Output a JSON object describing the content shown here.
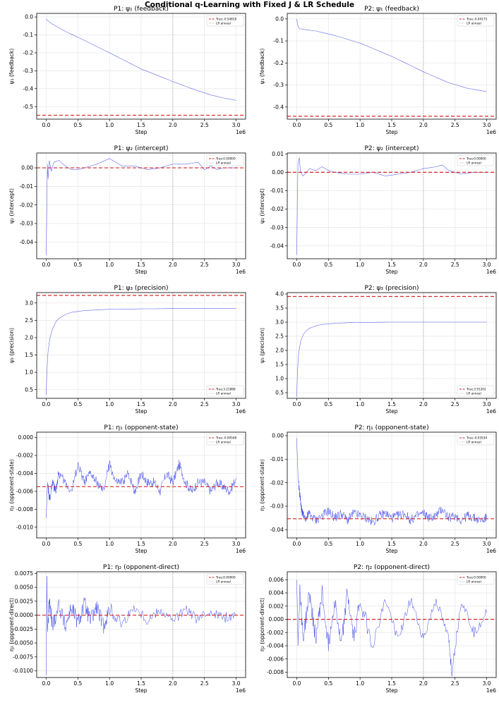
{
  "suptitle": "Conditional q-Learning with Fixed J & LR Schedule",
  "colors": {
    "trace": "#2b36e8",
    "true_line": "#d62728",
    "anneal": "#aaaaaa",
    "grid": "#e6e6e6"
  },
  "chart_data": [
    {
      "type": "line",
      "title": "P1: ψ₁ (feedback)",
      "ylabel": "ψ₁ (feedback)",
      "xlabel": "Step",
      "x_exponent": "1e6",
      "xlim": [
        -0.15,
        3.15
      ],
      "ylim": [
        -0.57,
        0.02
      ],
      "xticks": [
        0,
        0.5,
        1,
        1.5,
        2,
        2.5,
        3
      ],
      "xtick_labels": [
        "0.0",
        "0.5",
        "1.0",
        "1.5",
        "2.0",
        "2.5",
        "3.0"
      ],
      "yticks": [
        0,
        -0.1,
        -0.2,
        -0.3,
        -0.4,
        -0.5
      ],
      "ytick_labels": [
        "0.0",
        "-0.1",
        "-0.2",
        "-0.3",
        "-0.4",
        "-0.5"
      ],
      "true_value": -0.54818,
      "anneal_x": 2.0,
      "legend": {
        "position": "top-right",
        "entries": [
          "True:-0.54818",
          "LR anneal"
        ]
      },
      "series": [
        {
          "x": [
            0,
            0.02,
            0.1,
            0.3,
            0.6,
            1.0,
            1.5,
            2.0,
            2.3,
            2.6,
            2.8,
            3.0
          ],
          "y": [
            -0.01,
            -0.02,
            -0.04,
            -0.08,
            -0.13,
            -0.2,
            -0.29,
            -0.36,
            -0.4,
            -0.435,
            -0.452,
            -0.465
          ]
        }
      ]
    },
    {
      "type": "line",
      "title": "P2: ψ₁ (feedback)",
      "ylabel": "ψ₁ (feedback)",
      "xlabel": "Step",
      "x_exponent": "1e6",
      "xlim": [
        -0.15,
        3.15
      ],
      "ylim": [
        -0.455,
        0.025
      ],
      "xticks": [
        0,
        0.5,
        1,
        1.5,
        2,
        2.5,
        3
      ],
      "xtick_labels": [
        "0.0",
        "0.5",
        "1.0",
        "1.5",
        "2.0",
        "2.5",
        "3.0"
      ],
      "yticks": [
        0,
        -0.1,
        -0.2,
        -0.3,
        -0.4
      ],
      "ytick_labels": [
        "0.0",
        "-0.1",
        "-0.2",
        "-0.3",
        "-0.4"
      ],
      "true_value": -0.44175,
      "anneal_x": 2.0,
      "legend": {
        "position": "top-right",
        "entries": [
          "True:-0.44175",
          "LR anneal"
        ]
      },
      "series": [
        {
          "x": [
            0,
            0.01,
            0.03,
            0.05,
            0.3,
            0.6,
            1.0,
            1.5,
            2.0,
            2.4,
            2.7,
            3.0
          ],
          "y": [
            0.0,
            -0.02,
            -0.04,
            -0.045,
            -0.055,
            -0.075,
            -0.11,
            -0.17,
            -0.24,
            -0.29,
            -0.315,
            -0.33
          ]
        }
      ]
    },
    {
      "type": "line",
      "title": "P1: ψ₂ (intercept)",
      "ylabel": "ψ₂ (intercept)",
      "xlabel": "Step",
      "x_exponent": "1e6",
      "xlim": [
        -0.15,
        3.15
      ],
      "ylim": [
        -0.049,
        0.008
      ],
      "xticks": [
        0,
        0.5,
        1,
        1.5,
        2,
        2.5,
        3
      ],
      "xtick_labels": [
        "0.0",
        "0.5",
        "1.0",
        "1.5",
        "2.0",
        "2.5",
        "3.0"
      ],
      "yticks": [
        0,
        -0.01,
        -0.02,
        -0.03,
        -0.04
      ],
      "ytick_labels": [
        "0.00",
        "-0.01",
        "-0.02",
        "-0.03",
        "-0.04"
      ],
      "true_value": 0.0,
      "anneal_x": 2.0,
      "legend": {
        "position": "top-right",
        "entries": [
          "True:0.00000",
          "LR anneal"
        ]
      },
      "series": [
        {
          "x": [
            0,
            0.01,
            0.02,
            0.03,
            0.05,
            0.08,
            0.12,
            0.2,
            0.3,
            0.4,
            0.5,
            0.6,
            0.8,
            1.0,
            1.1,
            1.2,
            1.4,
            1.6,
            1.8,
            2.0,
            2.2,
            2.4,
            2.5,
            2.6,
            2.7,
            2.8,
            3.0
          ],
          "y": [
            -0.047,
            -0.02,
            0.002,
            -0.006,
            0.004,
            -0.002,
            0.003,
            0.004,
            0.001,
            -0.001,
            -0.001,
            0.0,
            0.002,
            0.005,
            0.003,
            0.001,
            0.001,
            -0.001,
            0.0,
            0.002,
            0.002,
            0.003,
            -0.001,
            0.001,
            -0.001,
            0.0,
            0.0
          ]
        }
      ]
    },
    {
      "type": "line",
      "title": "P2: ψ₂ (intercept)",
      "ylabel": "ψ₂ (intercept)",
      "xlabel": "Step",
      "x_exponent": "1e6",
      "xlim": [
        -0.15,
        3.15
      ],
      "ylim": [
        -0.047,
        0.0105
      ],
      "xticks": [
        0,
        0.5,
        1,
        1.5,
        2,
        2.5,
        3
      ],
      "xtick_labels": [
        "0.0",
        "0.5",
        "1.0",
        "1.5",
        "2.0",
        "2.5",
        "3.0"
      ],
      "yticks": [
        0.01,
        0,
        -0.01,
        -0.02,
        -0.03,
        -0.04
      ],
      "ytick_labels": [
        "0.01",
        "0.00",
        "-0.01",
        "-0.02",
        "-0.03",
        "-0.04"
      ],
      "true_value": 0.0,
      "anneal_x": 2.0,
      "legend": {
        "position": "top-right",
        "entries": [
          "True:0.00000",
          "LR anneal"
        ]
      },
      "series": [
        {
          "x": [
            0,
            0.01,
            0.02,
            0.04,
            0.06,
            0.1,
            0.2,
            0.3,
            0.4,
            0.5,
            0.6,
            0.8,
            1.0,
            1.2,
            1.4,
            1.6,
            1.8,
            2.0,
            2.2,
            2.3,
            2.4,
            2.6,
            2.8,
            3.0
          ],
          "y": [
            -0.045,
            -0.012,
            0.005,
            0.008,
            0.0,
            -0.002,
            0.002,
            0.001,
            0.003,
            0.001,
            0.0,
            -0.001,
            -0.001,
            0.0,
            -0.002,
            -0.001,
            0.0,
            0.002,
            0.003,
            0.004,
            0.001,
            -0.001,
            0.0,
            0.0
          ]
        }
      ]
    },
    {
      "type": "line",
      "title": "P1: ψ₃ (precision)",
      "ylabel": "ψ₃ (precision)",
      "xlabel": "Step",
      "x_exponent": "1e6",
      "xlim": [
        -0.15,
        3.15
      ],
      "ylim": [
        0.25,
        3.3
      ],
      "xticks": [
        0,
        0.5,
        1,
        1.5,
        2,
        2.5,
        3
      ],
      "xtick_labels": [
        "0.0",
        "0.5",
        "1.0",
        "1.5",
        "2.0",
        "2.5",
        "3.0"
      ],
      "yticks": [
        0.5,
        1.0,
        1.5,
        2.0,
        2.5,
        3.0
      ],
      "ytick_labels": [
        "0.5",
        "1.0",
        "1.5",
        "2.0",
        "2.5",
        "3.0"
      ],
      "true_value": 3.21888,
      "anneal_x": 2.0,
      "legend": {
        "position": "bottom-right",
        "entries": [
          "True:3.21888",
          "LR anneal"
        ]
      },
      "series": [
        {
          "x": [
            0,
            0.01,
            0.03,
            0.06,
            0.1,
            0.15,
            0.2,
            0.3,
            0.4,
            0.6,
            0.8,
            1.0,
            1.5,
            2.0,
            2.5,
            3.0
          ],
          "y": [
            0.35,
            1.0,
            1.6,
            2.0,
            2.25,
            2.45,
            2.55,
            2.67,
            2.73,
            2.78,
            2.8,
            2.82,
            2.83,
            2.84,
            2.84,
            2.84
          ]
        }
      ]
    },
    {
      "type": "line",
      "title": "P2: ψ₃ (precision)",
      "ylabel": "ψ₃ (precision)",
      "xlabel": "Step",
      "x_exponent": "1e6",
      "xlim": [
        -0.15,
        3.15
      ],
      "ylim": [
        0.3,
        4.05
      ],
      "xticks": [
        0,
        0.5,
        1,
        1.5,
        2,
        2.5,
        3
      ],
      "xtick_labels": [
        "0.0",
        "0.5",
        "1.0",
        "1.5",
        "2.0",
        "2.5",
        "3.0"
      ],
      "yticks": [
        0.5,
        1.0,
        1.5,
        2.0,
        2.5,
        3.0,
        3.5,
        4.0
      ],
      "ytick_labels": [
        "0.5",
        "1.0",
        "1.5",
        "2.0",
        "2.5",
        "3.0",
        "3.5",
        "4.0"
      ],
      "true_value": 3.91202,
      "anneal_x": 2.0,
      "legend": {
        "position": "bottom-right",
        "entries": [
          "True:3.91202",
          "LR anneal"
        ]
      },
      "series": [
        {
          "x": [
            0,
            0.01,
            0.03,
            0.06,
            0.1,
            0.15,
            0.2,
            0.3,
            0.4,
            0.6,
            0.8,
            1.0,
            1.5,
            2.0,
            2.5,
            3.0
          ],
          "y": [
            0.35,
            1.2,
            1.9,
            2.3,
            2.55,
            2.7,
            2.78,
            2.87,
            2.92,
            2.96,
            2.98,
            2.99,
            3.0,
            3.0,
            3.0,
            3.0
          ]
        }
      ]
    },
    {
      "type": "line",
      "title": "P1: η₁ (opponent-state)",
      "ylabel": "η₁ (opponent-state)",
      "xlabel": "Step",
      "x_exponent": "1e6",
      "xlim": [
        -0.15,
        3.15
      ],
      "ylim": [
        -0.0112,
        0.0006
      ],
      "xticks": [
        0,
        0.5,
        1,
        1.5,
        2,
        2.5,
        3
      ],
      "xtick_labels": [
        "0.0",
        "0.5",
        "1.0",
        "1.5",
        "2.0",
        "2.5",
        "3.0"
      ],
      "yticks": [
        0,
        -0.002,
        -0.004,
        -0.006,
        -0.008,
        -0.01
      ],
      "ytick_labels": [
        "0.000",
        "-0.002",
        "-0.004",
        "-0.006",
        "-0.008",
        "-0.010"
      ],
      "true_value": -0.00548,
      "anneal_x": 2.0,
      "legend": {
        "position": "top-right",
        "entries": [
          "True:-0.00548",
          "LR anneal"
        ]
      },
      "series": [
        {
          "x": [
            0,
            0.02,
            0.05,
            0.1,
            0.15,
            0.2,
            0.3,
            0.4,
            0.5,
            0.6,
            0.7,
            0.8,
            0.9,
            1.0,
            1.1,
            1.2,
            1.3,
            1.4,
            1.5,
            1.6,
            1.7,
            1.8,
            1.9,
            2.0,
            2.1,
            2.2,
            2.3,
            2.4,
            2.5,
            2.6,
            2.7,
            2.8,
            2.9,
            3.0
          ],
          "y": [
            -0.009,
            -0.005,
            -0.007,
            -0.005,
            -0.006,
            -0.004,
            -0.005,
            -0.006,
            -0.003,
            -0.005,
            -0.004,
            -0.005,
            -0.006,
            -0.003,
            -0.005,
            -0.005,
            -0.004,
            -0.006,
            -0.004,
            -0.005,
            -0.005,
            -0.006,
            -0.004,
            -0.005,
            -0.003,
            -0.005,
            -0.006,
            -0.005,
            -0.005,
            -0.006,
            -0.005,
            -0.0055,
            -0.006,
            -0.0045
          ]
        }
      ]
    },
    {
      "type": "line",
      "title": "P2: η₁ (opponent-state)",
      "ylabel": "η₁ (opponent-state)",
      "xlabel": "Step",
      "x_exponent": "1e6",
      "xlim": [
        -0.15,
        3.15
      ],
      "ylim": [
        -0.0435,
        0.0015
      ],
      "xticks": [
        0,
        0.5,
        1,
        1.5,
        2,
        2.5,
        3
      ],
      "xtick_labels": [
        "0.0",
        "0.5",
        "1.0",
        "1.5",
        "2.0",
        "2.5",
        "3.0"
      ],
      "yticks": [
        0,
        -0.01,
        -0.02,
        -0.03,
        -0.04
      ],
      "ytick_labels": [
        "0.00",
        "-0.01",
        "-0.02",
        "-0.03",
        "-0.04"
      ],
      "true_value": -0.03534,
      "anneal_x": 2.0,
      "legend": {
        "position": "top-right",
        "entries": [
          "True:-0.03534",
          "LR anneal"
        ]
      },
      "series": [
        {
          "x": [
            0,
            0.01,
            0.02,
            0.04,
            0.06,
            0.08,
            0.1,
            0.15,
            0.2,
            0.3,
            0.4,
            0.5,
            0.6,
            0.7,
            0.8,
            0.9,
            1.0,
            1.1,
            1.2,
            1.3,
            1.4,
            1.5,
            1.6,
            1.7,
            1.8,
            1.9,
            2.0,
            2.1,
            2.2,
            2.3,
            2.4,
            2.5,
            2.6,
            2.7,
            2.8,
            2.9,
            3.0
          ],
          "y": [
            -0.001,
            -0.01,
            -0.017,
            -0.023,
            -0.028,
            -0.032,
            -0.034,
            -0.035,
            -0.033,
            -0.036,
            -0.034,
            -0.032,
            -0.035,
            -0.033,
            -0.036,
            -0.033,
            -0.034,
            -0.035,
            -0.037,
            -0.034,
            -0.033,
            -0.035,
            -0.034,
            -0.033,
            -0.036,
            -0.034,
            -0.033,
            -0.035,
            -0.034,
            -0.031,
            -0.035,
            -0.034,
            -0.036,
            -0.034,
            -0.035,
            -0.036,
            -0.035
          ]
        }
      ]
    },
    {
      "type": "line",
      "title": "P1: η₂ (opponent-direct)",
      "ylabel": "η₂ (opponent-direct)",
      "xlabel": "Step",
      "x_exponent": "1e6",
      "xlim": [
        -0.15,
        3.15
      ],
      "ylim": [
        -0.0112,
        0.0078
      ],
      "xticks": [
        0,
        0.5,
        1,
        1.5,
        2,
        2.5,
        3
      ],
      "xtick_labels": [
        "0.0",
        "0.5",
        "1.0",
        "1.5",
        "2.0",
        "2.5",
        "3.0"
      ],
      "yticks": [
        0.0075,
        0.005,
        0.0025,
        0,
        -0.0025,
        -0.005,
        -0.0075,
        -0.01
      ],
      "ytick_labels": [
        "0.0075",
        "0.0050",
        "0.0025",
        "0.0000",
        "-0.0025",
        "-0.0050",
        "-0.0075",
        "-0.0100"
      ],
      "true_value": 0.0,
      "anneal_x": 2.0,
      "legend": {
        "position": "top-right",
        "entries": [
          "True:0.00000",
          "LR anneal"
        ]
      },
      "series": [
        {
          "x": [
            0,
            0.01,
            0.02,
            0.05,
            0.1,
            0.2,
            0.3,
            0.4,
            0.5,
            0.6,
            0.7,
            0.8,
            0.9,
            1.0,
            1.2,
            1.4,
            1.6,
            1.8,
            2.0,
            2.2,
            2.4,
            2.6,
            2.8,
            3.0
          ],
          "y": [
            -0.0108,
            0.007,
            -0.003,
            0.0025,
            -0.002,
            0.002,
            -0.002,
            0.0015,
            -0.0015,
            0.002,
            -0.001,
            0.0015,
            -0.002,
            0.001,
            -0.0015,
            0.0015,
            -0.001,
            0.001,
            -0.001,
            0.001,
            -0.0008,
            0.0008,
            -0.0005,
            0.0
          ]
        }
      ]
    },
    {
      "type": "line",
      "title": "P2: η₂ (opponent-direct)",
      "ylabel": "η₂ (opponent-direct)",
      "xlabel": "Step",
      "x_exponent": "1e6",
      "xlim": [
        -0.15,
        3.15
      ],
      "ylim": [
        -0.0088,
        0.0072
      ],
      "xticks": [
        0,
        0.5,
        1,
        1.5,
        2,
        2.5,
        3
      ],
      "xtick_labels": [
        "0.0",
        "0.5",
        "1.0",
        "1.5",
        "2.0",
        "2.5",
        "3.0"
      ],
      "yticks": [
        0.006,
        0.004,
        0.002,
        0,
        -0.002,
        -0.004,
        -0.006,
        -0.008
      ],
      "ytick_labels": [
        "0.006",
        "0.004",
        "0.002",
        "0.000",
        "-0.002",
        "-0.004",
        "-0.006",
        "-0.008"
      ],
      "true_value": 0.0,
      "anneal_x": 2.0,
      "legend": {
        "position": "top-right",
        "entries": [
          "True:0.00000",
          "LR anneal"
        ]
      },
      "series": [
        {
          "x": [
            0,
            0.02,
            0.05,
            0.1,
            0.2,
            0.3,
            0.4,
            0.5,
            0.6,
            0.7,
            0.8,
            0.9,
            1.0,
            1.2,
            1.4,
            1.6,
            1.8,
            2.0,
            2.2,
            2.4,
            2.45,
            2.6,
            2.8,
            3.0
          ],
          "y": [
            0.006,
            -0.004,
            0.005,
            -0.003,
            0.004,
            -0.003,
            0.004,
            -0.004,
            0.003,
            -0.004,
            0.004,
            -0.003,
            0.003,
            -0.004,
            0.003,
            -0.003,
            0.003,
            -0.003,
            0.003,
            -0.003,
            -0.008,
            0.003,
            -0.002,
            0.001
          ]
        }
      ]
    }
  ]
}
